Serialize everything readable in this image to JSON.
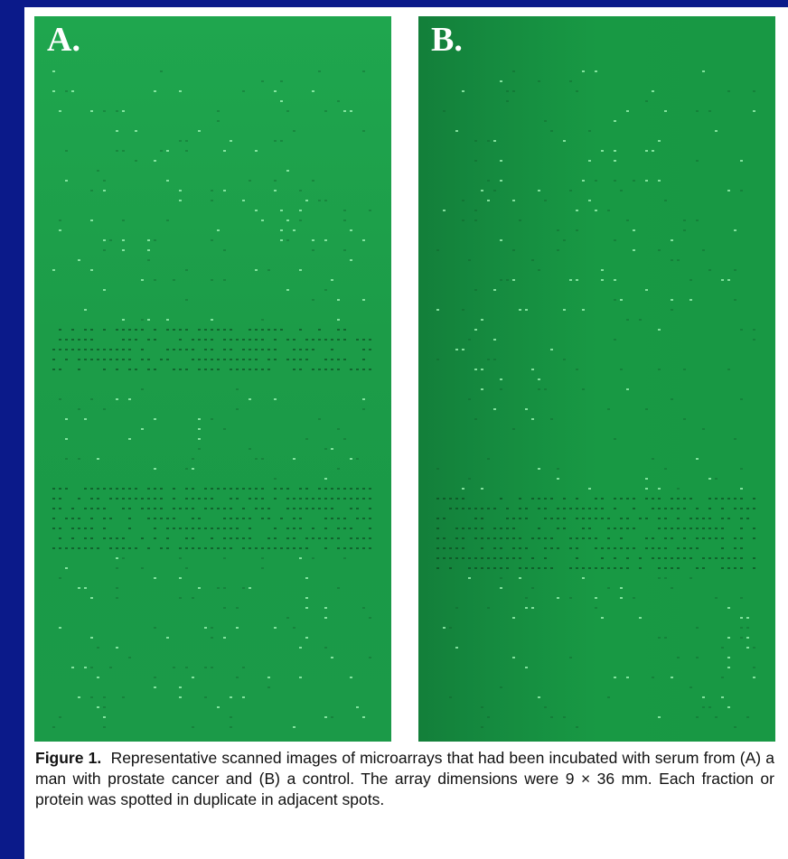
{
  "figure": {
    "panels": [
      {
        "label": "A."
      },
      {
        "label": "B."
      }
    ],
    "caption": {
      "label": "Figure 1.",
      "text": "Representative scanned images of microarrays that had been incubated with serum from (A) a man with prostate cancer and (B) a control. The array dimensions were 9 × 36 mm. Each fraction or protein was spotted in duplicate in adjacent spots."
    }
  }
}
